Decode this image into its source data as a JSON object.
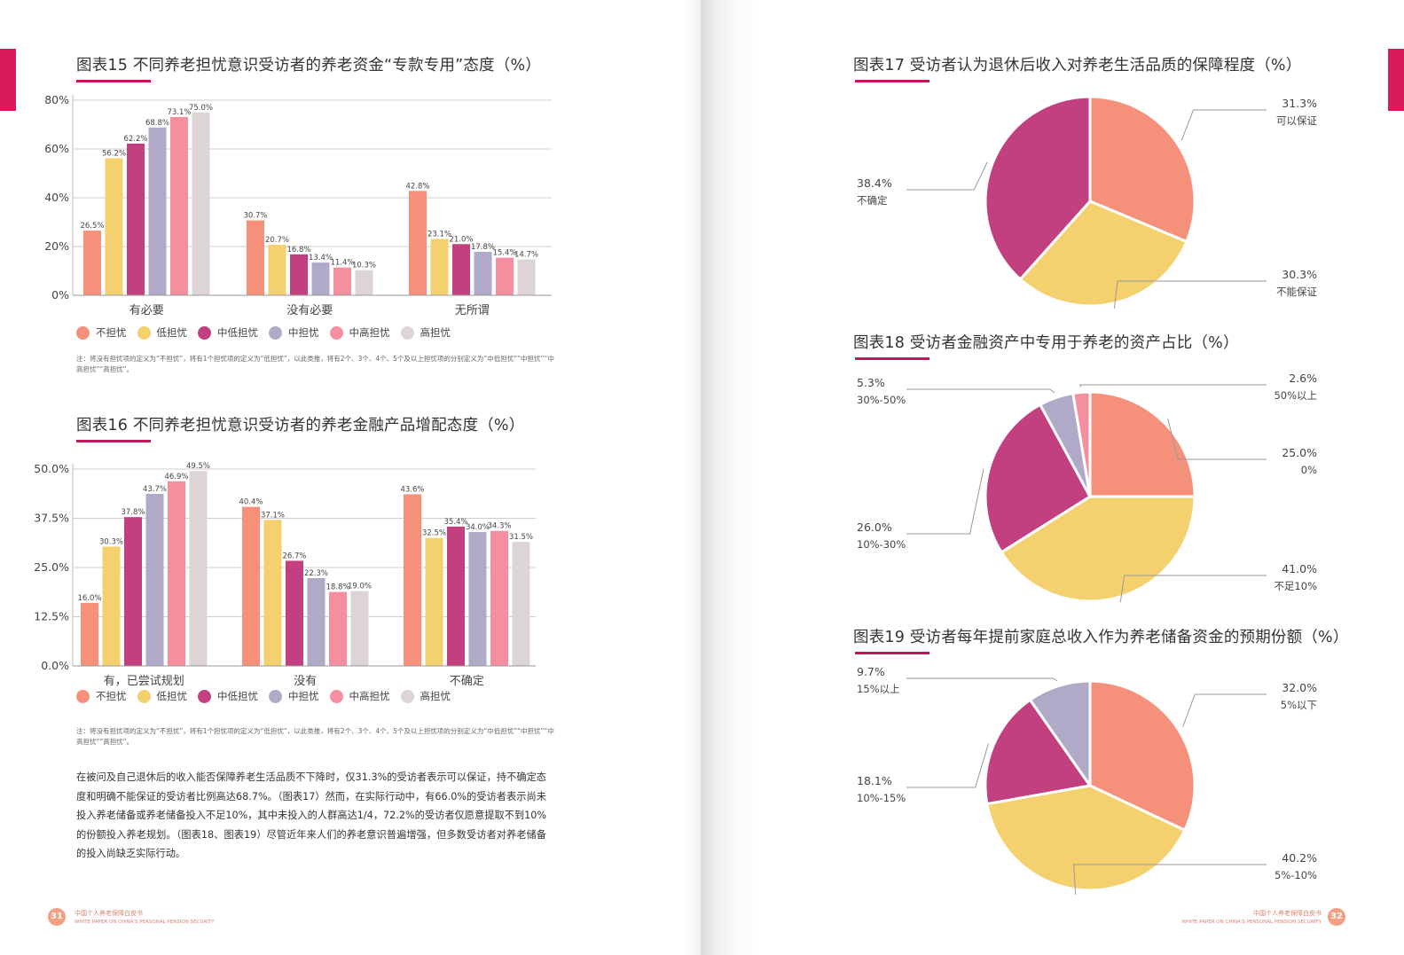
{
  "colors": {
    "accent": "#c2185b",
    "series": [
      "#f5917a",
      "#f4d06f",
      "#c2407f",
      "#b0a9c8",
      "#f48fa0",
      "#ddd5d5"
    ]
  },
  "legend_labels": [
    "不担忧",
    "低担忧",
    "中低担忧",
    "中担忧",
    "中高担忧",
    "高担忧"
  ],
  "fig15": {
    "title": "图表15 不同养老担忧意识受访者的养老资金“专款专用”态度（%）",
    "note": "注：将没有担忧项的定义为“不担忧”，将有1个担忧项的定义为“低担忧”，以此类推，将有2个、3个、4个、5个及以上担忧项的分别定义为“中低担忧”“中担忧”“中高担忧”“高担忧”。"
  },
  "fig16": {
    "title": "图表16 不同养老担忧意识受访者的养老金融产品增配态度（%）",
    "note": "注：将没有担忧项的定义为“不担忧”，将有1个担忧项的定义为“低担忧”，以此类推，将有2个、3个、4个、5个及以上担忧项的分别定义为“中低担忧”“中担忧”“中高担忧”“高担忧”。"
  },
  "fig17": {
    "title": "图表17 受访者认为退休后收入对养老生活品质的保障程度（%）"
  },
  "fig18": {
    "title": "图表18 受访者金融资产中专用于养老的资产占比（%）"
  },
  "fig19": {
    "title": "图表19 受访者每年提前家庭总收入作为养老储备资金的预期份额（%）"
  },
  "body_text": "在被问及自己退休后的收入能否保障养老生活品质不下降时，仅31.3%的受访者表示可以保证，持不确定态度和明确不能保证的受访者比例高达68.7%。（图表17）然而，在实际行动中，有66.0%的受访者表示尚未投入养老储备或养老储备投入不足10%，其中未投入的人群高达1/4，72.2%的受访者仅愿意提取不到10%的份额投入养老规划。（图表18、图表19）尽管近年来人们的养老意识普遍增强，但多数受访者对养老储备的投入尚缺乏实际行动。",
  "footer": {
    "left_num": "31",
    "right_num": "32",
    "cn": "中国个人养老保障白皮书",
    "en": "WHITE PAPER ON CHINA'S PERSONAL PENSION SECURITY"
  },
  "chart_data": [
    {
      "id": "fig15",
      "type": "bar",
      "categories": [
        "有必要",
        "没有必要",
        "无所谓"
      ],
      "series": [
        {
          "name": "不担忧",
          "values": [
            26.5,
            30.7,
            42.8
          ]
        },
        {
          "name": "低担忧",
          "values": [
            56.2,
            20.7,
            23.1
          ]
        },
        {
          "name": "中低担忧",
          "values": [
            62.2,
            16.8,
            21.0
          ]
        },
        {
          "name": "中担忧",
          "values": [
            68.8,
            13.4,
            17.8
          ]
        },
        {
          "name": "中高担忧",
          "values": [
            73.1,
            11.4,
            15.4
          ]
        },
        {
          "name": "高担忧",
          "values": [
            75.0,
            10.3,
            14.7
          ]
        }
      ],
      "yticks": [
        "0%",
        "20%",
        "40%",
        "60%",
        "80%"
      ],
      "ylim": [
        0,
        80
      ],
      "value_suffix": "%",
      "grid": true,
      "legend": "bottom"
    },
    {
      "id": "fig16",
      "type": "bar",
      "categories": [
        "有，已尝试规划",
        "没有",
        "不确定"
      ],
      "series": [
        {
          "name": "不担忧",
          "values": [
            16.0,
            40.4,
            43.6
          ]
        },
        {
          "name": "低担忧",
          "values": [
            30.3,
            37.1,
            32.5
          ]
        },
        {
          "name": "中低担忧",
          "values": [
            37.8,
            26.7,
            35.4
          ]
        },
        {
          "name": "中担忧",
          "values": [
            43.7,
            22.3,
            34.0
          ]
        },
        {
          "name": "中高担忧",
          "values": [
            46.9,
            18.8,
            34.3
          ]
        },
        {
          "name": "高担忧",
          "values": [
            49.5,
            19.0,
            31.5
          ]
        }
      ],
      "yticks": [
        "0.0%",
        "12.5%",
        "25.0%",
        "37.5%",
        "50.0%"
      ],
      "ylim": [
        0,
        50
      ],
      "value_suffix": "%",
      "grid": true,
      "legend": "bottom"
    },
    {
      "id": "fig17",
      "type": "pie",
      "slices": [
        {
          "label": "可以保证",
          "value": 31.3,
          "value_text": "31.3%",
          "color": "#f5917a"
        },
        {
          "label": "不能保证",
          "value": 30.3,
          "value_text": "30.3%",
          "color": "#f4d06f"
        },
        {
          "label": "不确定",
          "value": 38.4,
          "value_text": "38.4%",
          "color": "#c2407f"
        }
      ]
    },
    {
      "id": "fig18",
      "type": "pie",
      "slices": [
        {
          "label": "0%",
          "value": 25.0,
          "value_text": "25.0%",
          "color": "#f5917a"
        },
        {
          "label": "不足10%",
          "value": 41.0,
          "value_text": "41.0%",
          "color": "#f4d06f"
        },
        {
          "label": "10%-30%",
          "value": 26.0,
          "value_text": "26.0%",
          "color": "#c2407f"
        },
        {
          "label": "30%-50%",
          "value": 5.3,
          "value_text": "5.3%",
          "color": "#b0a9c8"
        },
        {
          "label": "50%以上",
          "value": 2.6,
          "value_text": "2.6%",
          "color": "#f48fa0"
        }
      ]
    },
    {
      "id": "fig19",
      "type": "pie",
      "slices": [
        {
          "label": "5%以下",
          "value": 32.0,
          "value_text": "32.0%",
          "color": "#f5917a"
        },
        {
          "label": "5%-10%",
          "value": 40.2,
          "value_text": "40.2%",
          "color": "#f4d06f"
        },
        {
          "label": "10%-15%",
          "value": 18.1,
          "value_text": "18.1%",
          "color": "#c2407f"
        },
        {
          "label": "15%以上",
          "value": 9.7,
          "value_text": "9.7%",
          "color": "#b0a9c8"
        }
      ]
    }
  ]
}
